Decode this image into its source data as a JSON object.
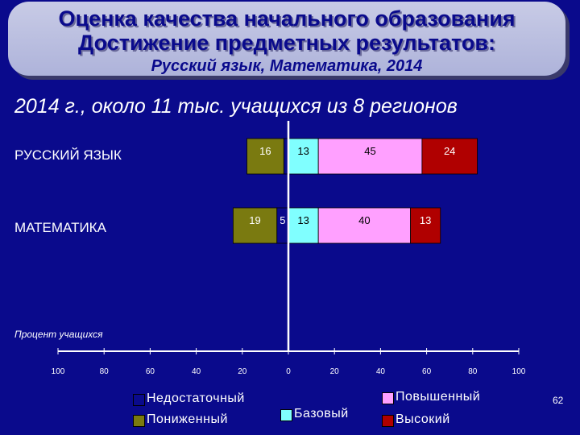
{
  "title": {
    "line1": "Оценка качества начального образования",
    "line2": "Достижение предметных результатов:",
    "line3": "Русский язык, Математика, 2014"
  },
  "subtitle": "2014 г., около 11 тыс. учащихся из 8 регионов",
  "slide_number": "62",
  "chart_data": {
    "type": "bar",
    "orientation": "horizontal",
    "stacked": "diverging",
    "categories": [
      "РУССКИЙ ЯЗЫК",
      "МАТЕМАТИКА"
    ],
    "xlabel": "Процент учащихся",
    "xlim": [
      -100,
      100
    ],
    "xticks": [
      -100,
      -80,
      -60,
      -40,
      -20,
      0,
      20,
      40,
      60,
      80,
      100
    ],
    "xtick_labels": [
      "100",
      "80",
      "60",
      "40",
      "20",
      "0",
      "20",
      "40",
      "60",
      "80",
      "100"
    ],
    "grid": false,
    "legend_position": "bottom",
    "series": [
      {
        "name": "Недостаточный",
        "side": "negative",
        "color": "#0a0a8c",
        "values": [
          2,
          5
        ]
      },
      {
        "name": "Пониженный",
        "side": "negative",
        "color": "#7a7a10",
        "values": [
          16,
          19
        ]
      },
      {
        "name": "Базовый",
        "side": "positive",
        "color": "#80ffff",
        "values": [
          13,
          13
        ]
      },
      {
        "name": "Повышенный",
        "side": "positive",
        "color": "#ffa0ff",
        "values": [
          45,
          40
        ]
      },
      {
        "name": "Высокий",
        "side": "positive",
        "color": "#b00000",
        "values": [
          24,
          13
        ]
      }
    ]
  }
}
